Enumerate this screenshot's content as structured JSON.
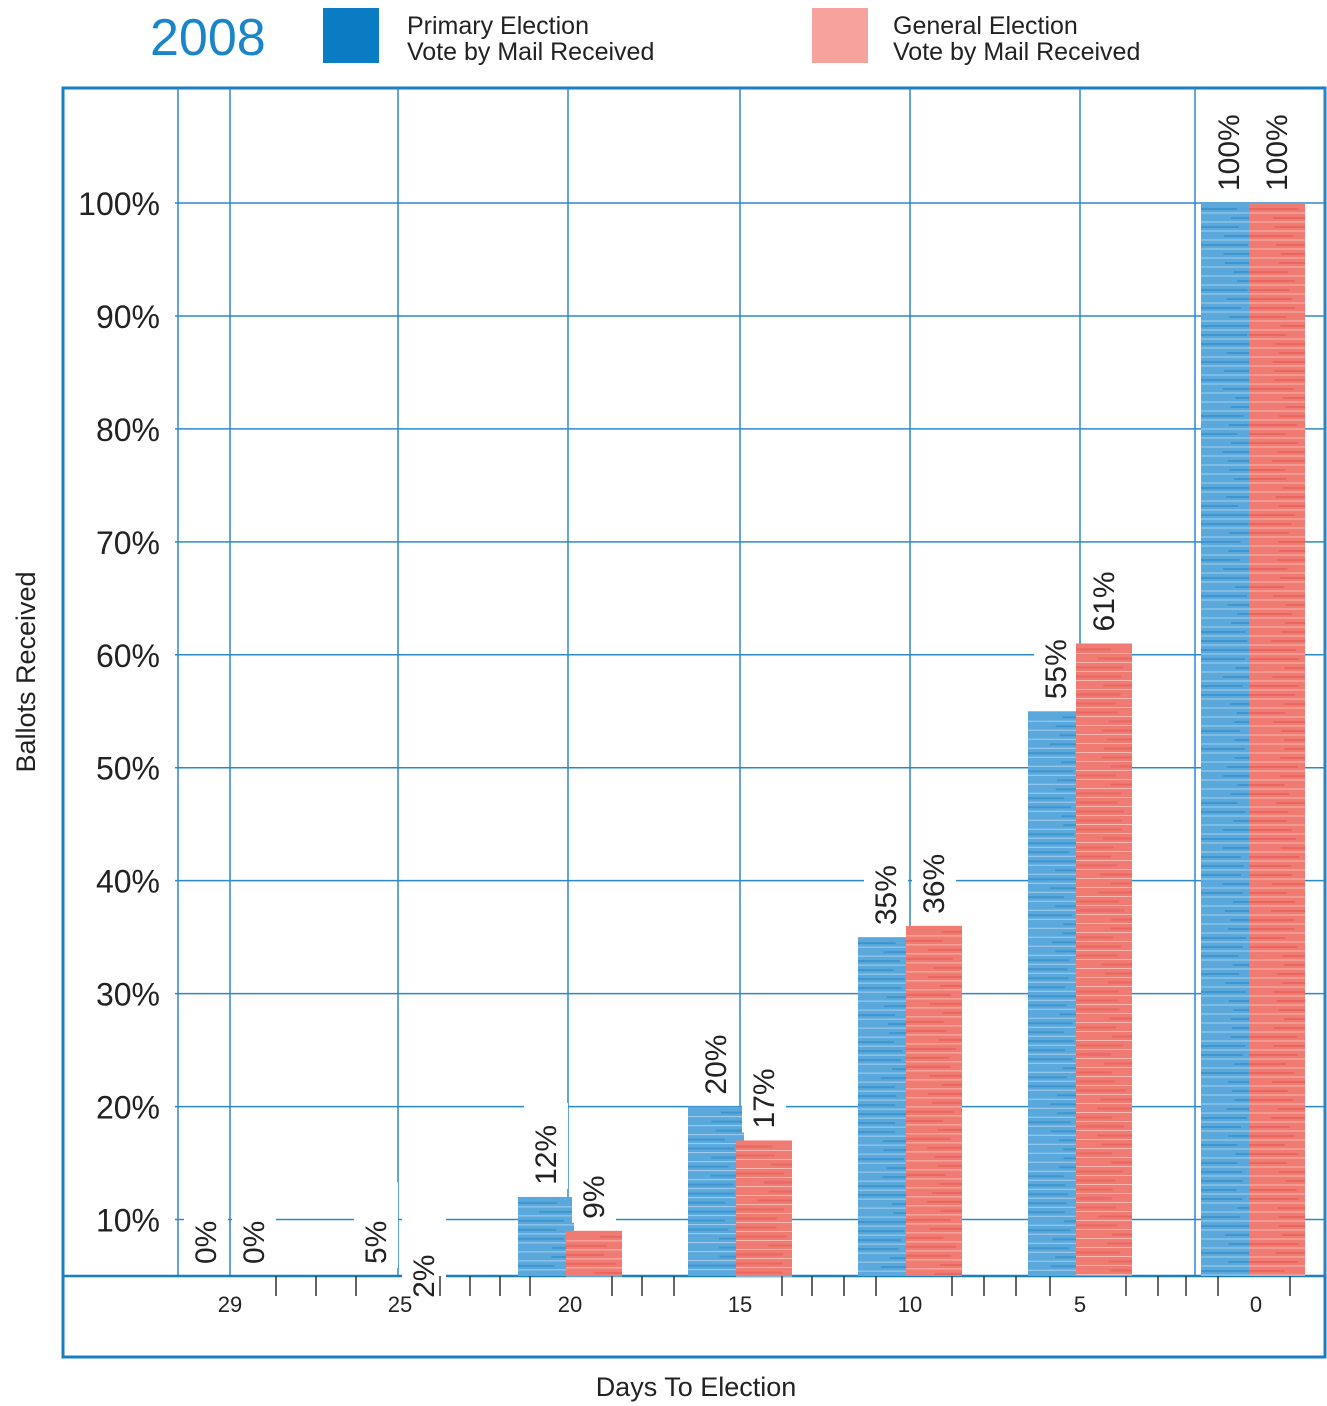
{
  "header": {
    "year": "2008"
  },
  "legend": {
    "items": [
      {
        "line1": "Primary Election",
        "line2": "Vote by Mail Received",
        "color": "#0a7cc4"
      },
      {
        "line1": "General Election",
        "line2": "Vote by Mail Received",
        "color": "#f6a39d"
      }
    ]
  },
  "colors": {
    "primary_bar": "#5aa8dc",
    "primary_bar_dark": "#2d86c6",
    "general_bar": "#f07b73",
    "general_bar_dark": "#e4584e",
    "grid": "#2b89c8",
    "frame": "#1a7fc2"
  },
  "chart_data": {
    "type": "bar",
    "title": "",
    "xlabel": "Days To Election",
    "ylabel": "Ballots Received",
    "ylim": [
      0,
      100
    ],
    "y_ticks": [
      "10%",
      "20%",
      "30%",
      "40%",
      "50%",
      "60%",
      "70%",
      "80%",
      "90%",
      "100%"
    ],
    "categories": [
      "29",
      "25",
      "20",
      "15",
      "10",
      "5",
      "0"
    ],
    "series": [
      {
        "name": "Primary Election Vote by Mail Received",
        "values": [
          0,
          5,
          12,
          20,
          35,
          55,
          100
        ],
        "labels": [
          "0%",
          "5%",
          "12%",
          "20%",
          "35%",
          "55%",
          "100%"
        ]
      },
      {
        "name": "General Election Vote by Mail Received",
        "values": [
          0,
          2,
          9,
          17,
          36,
          61,
          100
        ],
        "labels": [
          "0%",
          "2%",
          "9%",
          "17%",
          "36%",
          "61%",
          "100%"
        ]
      }
    ],
    "grid": true,
    "legend_position": "top"
  }
}
